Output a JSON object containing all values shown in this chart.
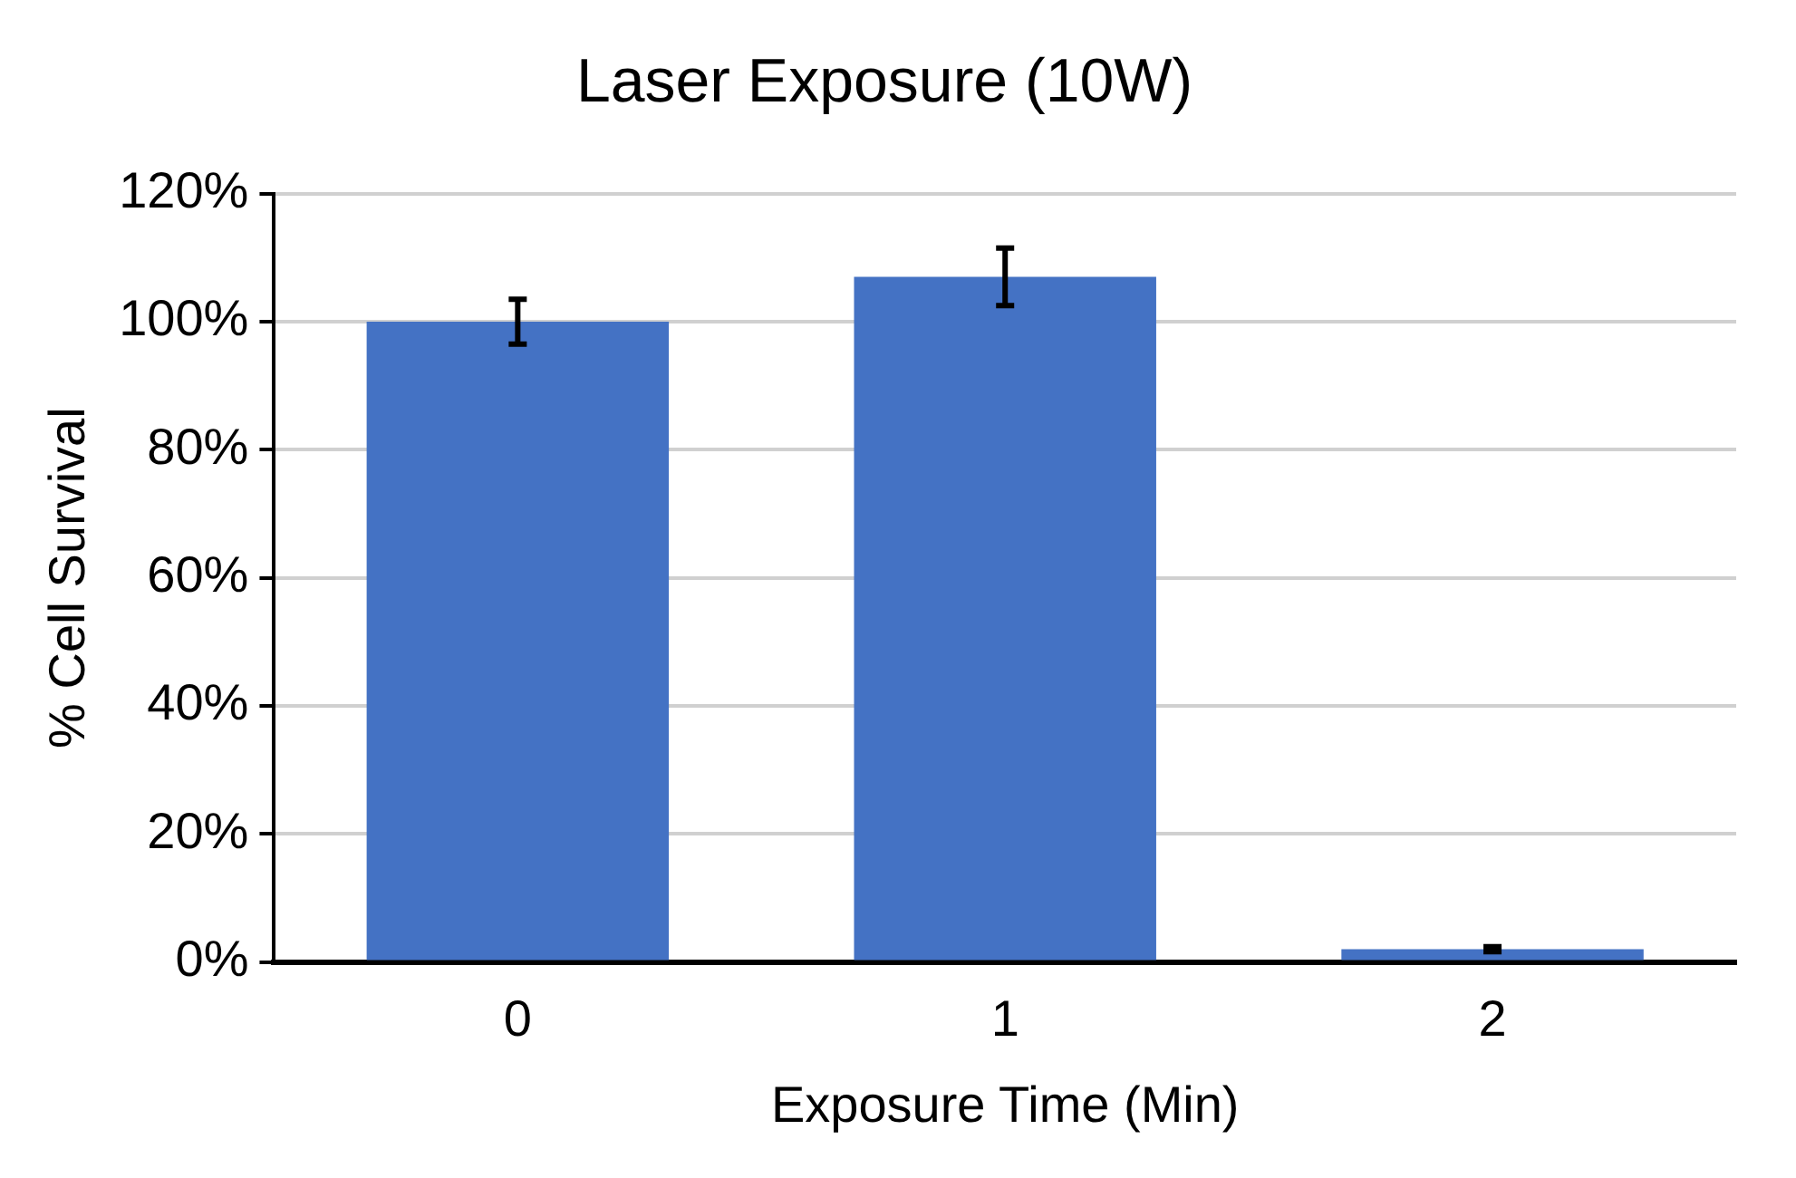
{
  "chart_data": {
    "type": "bar",
    "title": "Laser Exposure (10W)",
    "xlabel": "Exposure Time (Min)",
    "ylabel": "% Cell Survival",
    "categories": [
      "0",
      "1",
      "2"
    ],
    "values": [
      100,
      107,
      2
    ],
    "errors": [
      3.5,
      4.5,
      0.4
    ],
    "color": "#4472c4",
    "ylim": [
      0,
      120
    ],
    "yticks": [
      {
        "value": 0,
        "label": "0%"
      },
      {
        "value": 20,
        "label": "20%"
      },
      {
        "value": 40,
        "label": "40%"
      },
      {
        "value": 60,
        "label": "60%"
      },
      {
        "value": 80,
        "label": "80%"
      },
      {
        "value": 100,
        "label": "100%"
      },
      {
        "value": 120,
        "label": "120%"
      }
    ],
    "grid": "y"
  }
}
